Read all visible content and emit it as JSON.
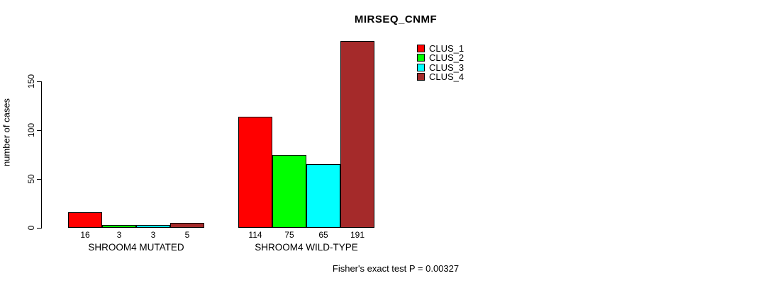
{
  "chart_data": {
    "type": "bar",
    "title": "MIRSEQ_CNMF",
    "xlabel": "",
    "ylabel": "number of cases",
    "categories": [
      "SHROOM4 MUTATED",
      "SHROOM4 WILD-TYPE"
    ],
    "series": [
      {
        "name": "CLUS_1",
        "color": "#ff0000",
        "values": [
          16,
          114
        ]
      },
      {
        "name": "CLUS_2",
        "color": "#00ff00",
        "values": [
          3,
          75
        ]
      },
      {
        "name": "CLUS_3",
        "color": "#00ffff",
        "values": [
          3,
          65
        ]
      },
      {
        "name": "CLUS_4",
        "color": "#a52a2a",
        "values": [
          5,
          191
        ]
      }
    ],
    "yticks": [
      0,
      50,
      100,
      150
    ],
    "ylim": [
      0,
      191
    ],
    "axis_range_shown": [
      0,
      150
    ],
    "grid": false,
    "bar_value_labels_shown": true,
    "legend_position": "top-right",
    "legend_entries": [
      "CLUS_1",
      "CLUS_2",
      "CLUS_3",
      "CLUS_4"
    ],
    "annotation": "Fisher's exact test P = 0.00327"
  }
}
